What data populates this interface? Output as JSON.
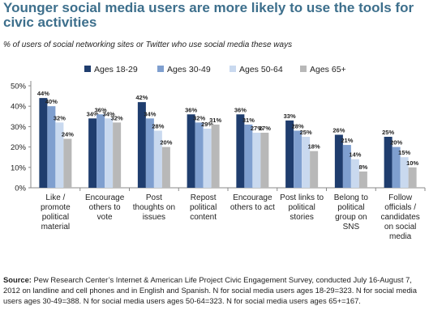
{
  "title": "Younger social media users are more likely to use the tools for civic activities",
  "subtitle": "% of users of social networking sites or Twitter who use social media these ways",
  "source_label": "Source:",
  "source_text": " Pew Research Center’s Internet & American Life Project Civic Engagement Survey, conducted July 16-August 7, 2012 on landline and cell phones and in English and Spanish. N for social media users ages 18-29=323. N for social media users ages 30-49=388. N for social media users ages 50-64=323. N for social media users ages 65+=167.",
  "chart_data": {
    "type": "bar",
    "categories": [
      [
        "Like /",
        "promote",
        "political",
        "material"
      ],
      [
        "Encourage",
        "others to",
        "vote"
      ],
      [
        "Post",
        "thoughts on",
        "issues"
      ],
      [
        "Repost",
        "political",
        "content"
      ],
      [
        "Encourage",
        "others to act"
      ],
      [
        "Post links to",
        "political",
        "stories"
      ],
      [
        "Belong to",
        "political",
        "group on",
        "SNS"
      ],
      [
        "Follow",
        "officials /",
        "candidates",
        "on social",
        "media"
      ]
    ],
    "series": [
      {
        "name": "Ages 18-29",
        "color": "#1f3d6e",
        "values": [
          44,
          34,
          42,
          36,
          36,
          33,
          26,
          25
        ]
      },
      {
        "name": "Ages 30-49",
        "color": "#7f9fcf",
        "values": [
          40,
          36,
          34,
          32,
          31,
          28,
          21,
          20
        ]
      },
      {
        "name": "Ages 50-64",
        "color": "#c9d9ef",
        "values": [
          32,
          34,
          28,
          29,
          27,
          25,
          14,
          15
        ]
      },
      {
        "name": "Ages 65+",
        "color": "#b8b8b8",
        "values": [
          24,
          32,
          20,
          31,
          27,
          18,
          8,
          10
        ]
      }
    ],
    "ylim": [
      0,
      50
    ],
    "yticks": [
      "0%",
      "10%",
      "20%",
      "30%",
      "40%",
      "50%"
    ],
    "grid": false,
    "legend": "top"
  }
}
